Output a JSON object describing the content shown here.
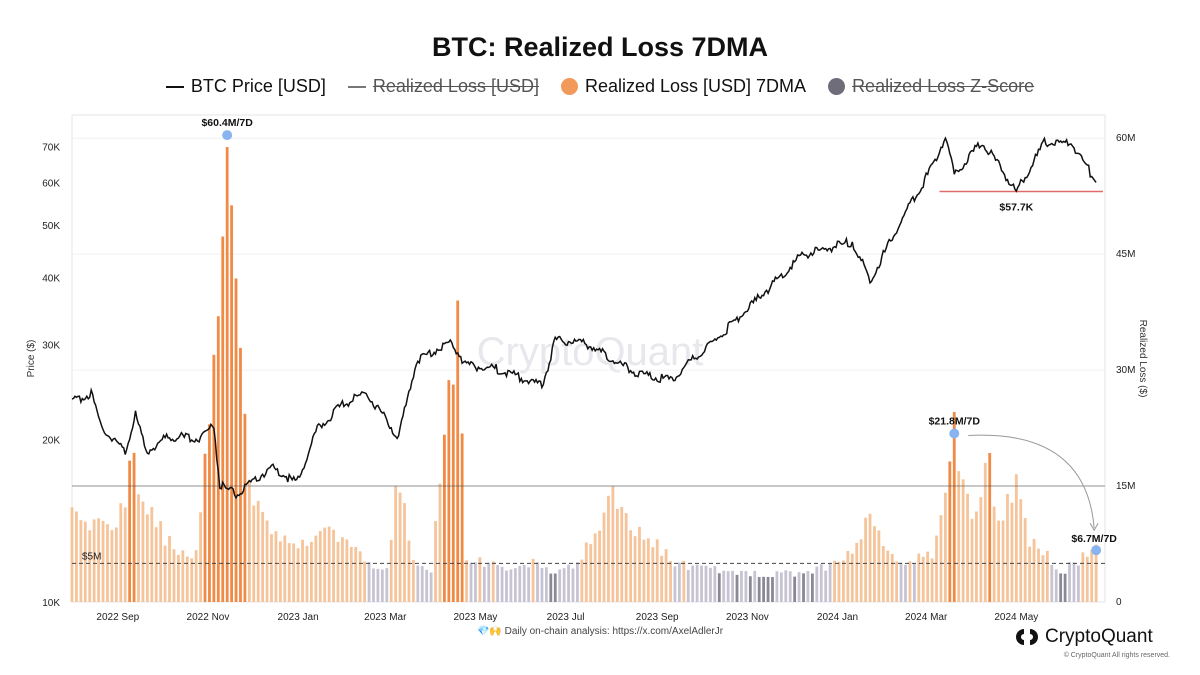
{
  "title": "BTC: Realized Loss 7DMA",
  "legend": [
    {
      "label": "BTC Price [USD]",
      "marker": "line",
      "color": "#111111",
      "struck": false
    },
    {
      "label": "Realized Loss [USD]",
      "marker": "line",
      "color": "#777777",
      "struck": true
    },
    {
      "label": "Realized Loss [USD] 7DMA",
      "marker": "dot",
      "color": "#f29a5b",
      "struck": false
    },
    {
      "label": "Realized Loss Z-Score",
      "marker": "dot",
      "color": "#6f6d7a",
      "struck": true
    }
  ],
  "watermark": "CryptoQuant",
  "footer_text": "💎🙌 Daily on-chain analysis: https://x.com/AxelAdlerJr",
  "brand_name": "CryptoQuant",
  "copyright": "© CryptoQuant All rights reserved.",
  "colors": {
    "price": "#111111",
    "loss_high": "#f08a45",
    "loss_mid": "#f5c49a",
    "loss_low": "#c7c3d3",
    "loss_zero": "#8a8894",
    "support": "#e06a6a",
    "marker": "#8ab4f0"
  },
  "chart_data": {
    "type": "bar",
    "title": "BTC: Realized Loss 7DMA",
    "x_range": [
      "2022-08-01",
      "2024-06-30"
    ],
    "x_ticks": [
      "2022 Sep",
      "2022 Nov",
      "2023 Jan",
      "2023 Mar",
      "2023 May",
      "2023 Jul",
      "2023 Sep",
      "2023 Nov",
      "2024 Jan",
      "2024 Mar",
      "2024 May"
    ],
    "y_left": {
      "label": "Price ($)",
      "scale": "log",
      "range": [
        10000,
        80000
      ],
      "ticks": [
        10000,
        20000,
        30000,
        40000,
        50000,
        60000,
        70000
      ],
      "tick_labels": [
        "10K",
        "20K",
        "30K",
        "40K",
        "50K",
        "60K",
        "70K"
      ]
    },
    "y_right": {
      "label": "Realized Loss ($)",
      "range": [
        0,
        63000000
      ],
      "ticks": [
        0,
        15000000,
        30000000,
        45000000,
        60000000
      ],
      "tick_labels": [
        "0",
        "15M",
        "30M",
        "45M",
        "60M"
      ]
    },
    "price_series": {
      "name": "BTC Price [USD]",
      "points": [
        [
          "2022-08-01",
          23500
        ],
        [
          "2022-08-14",
          24400
        ],
        [
          "2022-08-20",
          21300
        ],
        [
          "2022-09-06",
          19000
        ],
        [
          "2022-09-13",
          22300
        ],
        [
          "2022-09-20",
          19000
        ],
        [
          "2022-10-05",
          20300
        ],
        [
          "2022-10-25",
          20100
        ],
        [
          "2022-11-05",
          21300
        ],
        [
          "2022-11-09",
          16500
        ],
        [
          "2022-11-21",
          15800
        ],
        [
          "2022-12-14",
          17800
        ],
        [
          "2022-12-31",
          16600
        ],
        [
          "2023-01-14",
          20900
        ],
        [
          "2023-01-30",
          23100
        ],
        [
          "2023-02-16",
          24500
        ],
        [
          "2023-03-10",
          20200
        ],
        [
          "2023-03-22",
          28000
        ],
        [
          "2023-04-14",
          30400
        ],
        [
          "2023-04-25",
          27500
        ],
        [
          "2023-05-15",
          27100
        ],
        [
          "2023-06-15",
          25100
        ],
        [
          "2023-06-24",
          30500
        ],
        [
          "2023-07-14",
          30300
        ],
        [
          "2023-08-17",
          26600
        ],
        [
          "2023-09-10",
          25800
        ],
        [
          "2023-10-23",
          33000
        ],
        [
          "2023-11-09",
          36700
        ],
        [
          "2023-12-08",
          44000
        ],
        [
          "2024-01-11",
          46600
        ],
        [
          "2024-01-23",
          39500
        ],
        [
          "2024-02-15",
          52000
        ],
        [
          "2024-03-05",
          64000
        ],
        [
          "2024-03-14",
          73000
        ],
        [
          "2024-03-20",
          62000
        ],
        [
          "2024-04-08",
          71600
        ],
        [
          "2024-05-01",
          57700
        ],
        [
          "2024-05-20",
          71000
        ],
        [
          "2024-06-07",
          71000
        ],
        [
          "2024-06-24",
          60300
        ]
      ]
    },
    "loss_series": {
      "name": "Realized Loss [USD] 7DMA",
      "points": [
        [
          "2022-08-01",
          11000000
        ],
        [
          "2022-08-25",
          9000000
        ],
        [
          "2022-09-05",
          13000000
        ],
        [
          "2022-09-11",
          19000000
        ],
        [
          "2022-09-20",
          12000000
        ],
        [
          "2022-10-10",
          6500000
        ],
        [
          "2022-10-25",
          6000000
        ],
        [
          "2022-11-09",
          44000000
        ],
        [
          "2022-11-14",
          60400000
        ],
        [
          "2022-11-20",
          40000000
        ],
        [
          "2022-11-30",
          15000000
        ],
        [
          "2022-12-10",
          10000000
        ],
        [
          "2022-12-31",
          8000000
        ],
        [
          "2023-01-20",
          9000000
        ],
        [
          "2023-02-15",
          5500000
        ],
        [
          "2023-03-02",
          4200000
        ],
        [
          "2023-03-10",
          17000000
        ],
        [
          "2023-03-18",
          6000000
        ],
        [
          "2023-04-01",
          4000000
        ],
        [
          "2023-04-20",
          40000000
        ],
        [
          "2023-04-24",
          6000000
        ],
        [
          "2023-05-10",
          5000000
        ],
        [
          "2023-05-25",
          4200000
        ],
        [
          "2023-06-10",
          5500000
        ],
        [
          "2023-06-20",
          4000000
        ],
        [
          "2023-07-10",
          5000000
        ],
        [
          "2023-08-01",
          14000000
        ],
        [
          "2023-08-20",
          9000000
        ],
        [
          "2023-09-15",
          5000000
        ],
        [
          "2023-10-20",
          4000000
        ],
        [
          "2023-11-15",
          3500000
        ],
        [
          "2023-12-15",
          4000000
        ],
        [
          "2024-01-10",
          6000000
        ],
        [
          "2024-01-24",
          11000000
        ],
        [
          "2024-02-10",
          5000000
        ],
        [
          "2024-03-05",
          6000000
        ],
        [
          "2024-03-20",
          21800000
        ],
        [
          "2024-04-01",
          12000000
        ],
        [
          "2024-04-13",
          18000000
        ],
        [
          "2024-04-20",
          9000000
        ],
        [
          "2024-05-01",
          17000000
        ],
        [
          "2024-05-10",
          8000000
        ],
        [
          "2024-06-01",
          4000000
        ],
        [
          "2024-06-24",
          6700000
        ]
      ]
    },
    "reference_lines": [
      {
        "value": 15000000,
        "axis": "right",
        "style": "solid",
        "label": ""
      },
      {
        "value": 5000000,
        "axis": "right",
        "style": "dashed",
        "label": "$5M"
      },
      {
        "value": 57700,
        "axis": "left",
        "style": "solid-red",
        "from": "2024-03-10",
        "to": "2024-06-30",
        "label": "$57.7K"
      }
    ],
    "annotations": [
      {
        "label": "$60.4M/7D",
        "date": "2022-11-14",
        "value": 60400000,
        "axis": "right"
      },
      {
        "label": "$21.8M/7D",
        "date": "2024-03-20",
        "value": 21800000,
        "axis": "right"
      },
      {
        "label": "$6.7M/7D",
        "date": "2024-06-24",
        "value": 6700000,
        "axis": "right"
      },
      {
        "label": "$57.7K",
        "date": "2024-05-01",
        "value": 57700,
        "axis": "left"
      }
    ]
  }
}
